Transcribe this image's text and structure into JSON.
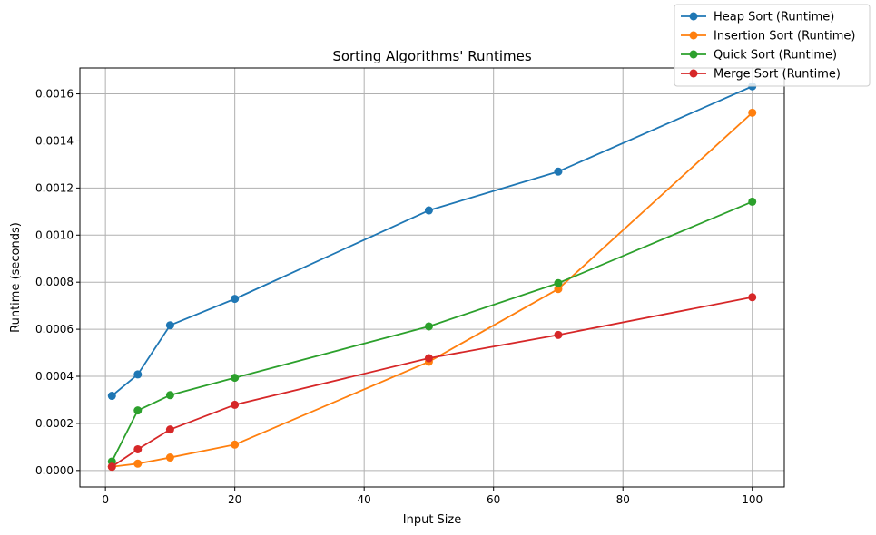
{
  "chart_data": {
    "type": "line",
    "title": "Sorting Algorithms' Runtimes",
    "xlabel": "Input Size",
    "ylabel": "Runtime (seconds)",
    "xlim": [
      -3.95,
      104.95
    ],
    "ylim": [
      -7e-05,
      0.00171
    ],
    "xticks": [
      0,
      20,
      40,
      60,
      80,
      100
    ],
    "xtick_labels": [
      "0",
      "20",
      "40",
      "60",
      "80",
      "100"
    ],
    "yticks": [
      0,
      0.0002,
      0.0004,
      0.0006,
      0.0008,
      0.001,
      0.0012,
      0.0014,
      0.0016
    ],
    "ytick_labels": [
      "0.0000",
      "0.0002",
      "0.0004",
      "0.0006",
      "0.0008",
      "0.0010",
      "0.0012",
      "0.0014",
      "0.0016"
    ],
    "grid": true,
    "legend_position": "top-right, outside plot area",
    "x": [
      1,
      5,
      10,
      20,
      50,
      70,
      100
    ],
    "series": [
      {
        "name": "Heap Sort (Runtime)",
        "color": "#1f77b4",
        "values": [
          0.000317,
          0.000408,
          0.000617,
          0.000729,
          0.001105,
          0.00127,
          0.001632
        ]
      },
      {
        "name": "Insertion Sort (Runtime)",
        "color": "#ff7f0e",
        "values": [
          1.6e-05,
          2.9e-05,
          5.5e-05,
          0.00011,
          0.000462,
          0.000771,
          0.00152
        ]
      },
      {
        "name": "Quick Sort (Runtime)",
        "color": "#2ca02c",
        "values": [
          3.8e-05,
          0.000255,
          0.00032,
          0.000394,
          0.000612,
          0.000796,
          0.001142
        ]
      },
      {
        "name": "Merge Sort (Runtime)",
        "color": "#d62728",
        "values": [
          1.6e-05,
          9e-05,
          0.000174,
          0.000279,
          0.000477,
          0.000576,
          0.000736
        ]
      }
    ]
  }
}
